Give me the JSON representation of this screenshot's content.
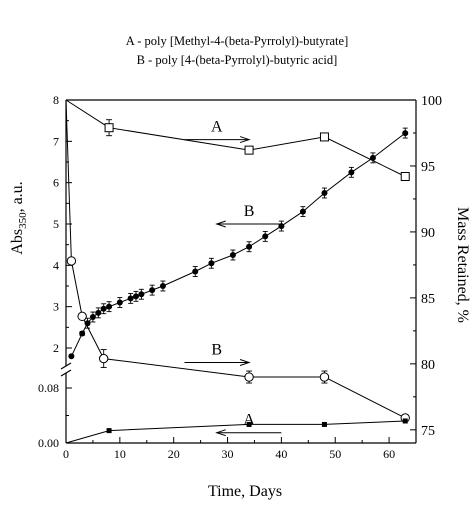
{
  "legend_lines": [
    "A - poly [Methyl-4-(beta-Pyrrolyl)-butyrate]",
    "B - poly [4-(beta-Pyrrolyl)-butyric acid]"
  ],
  "colors": {
    "ink": "#000000",
    "background": "#ffffff"
  },
  "chart_data": {
    "type": "line",
    "xlabel": "Time, Days",
    "ylabel_left": "Abs",
    "ylabel_left_sub": "350",
    "ylabel_left_suffix": ", a.u.",
    "ylabel_right": "Mass Retained, %",
    "xlim": [
      0,
      65
    ],
    "x_ticks": [
      0,
      10,
      20,
      30,
      40,
      50,
      60
    ],
    "y_left_axis_broken": true,
    "y_left_lower_ticks": [
      0.0,
      0.08
    ],
    "y_left_lower_tick_labels": [
      "0.00",
      "0.08"
    ],
    "y_left_upper_ticks": [
      2,
      3,
      4,
      5,
      6,
      7,
      8
    ],
    "y_left_upper_tick_labels": [
      "2",
      "3",
      "4",
      "5",
      "6",
      "7",
      "8"
    ],
    "y_right_lim": [
      74,
      100
    ],
    "y_right_ticks": [
      75,
      80,
      85,
      90,
      95,
      100
    ],
    "y_right_tick_labels": [
      "75",
      "80",
      "85",
      "90",
      "95",
      "100"
    ],
    "grid": false,
    "annotations": [
      {
        "label": "A",
        "arrow": "right",
        "x_from": 22,
        "x_to": 34,
        "y_axis": "right",
        "y": 97.0
      },
      {
        "label": "B",
        "arrow": "left",
        "x_from": 28,
        "x_to": 40,
        "y_axis": "left",
        "y": 5.0
      },
      {
        "label": "B",
        "arrow": "right",
        "x_from": 22,
        "x_to": 34,
        "y_axis": "right",
        "y": 80.1
      },
      {
        "label": "A",
        "arrow": "left",
        "x_from": 28,
        "x_to": 40,
        "y_axis": "left",
        "y": 0.015
      }
    ],
    "series": [
      {
        "label": "A",
        "quantity": "mass retained",
        "axis": "right",
        "marker": "open-square",
        "x": [
          0,
          8,
          34,
          48,
          63
        ],
        "y": [
          100,
          97.9,
          96.2,
          97.2,
          94.2
        ]
      },
      {
        "label": "B",
        "quantity": "mass retained",
        "axis": "right",
        "marker": "open-circle",
        "x": [
          0,
          1,
          3,
          7,
          34,
          48,
          63
        ],
        "y": [
          100,
          87.8,
          83.6,
          80.4,
          79.0,
          79.0,
          75.9
        ]
      },
      {
        "label": "B",
        "quantity": "absorbance",
        "axis": "left",
        "marker": "filled-circle",
        "x": [
          1,
          3,
          4,
          5,
          6,
          7,
          8,
          10,
          12,
          13,
          14,
          16,
          18,
          24,
          27,
          31,
          34,
          37,
          40,
          44,
          48,
          53,
          57,
          63
        ],
        "y": [
          1.8,
          2.35,
          2.6,
          2.75,
          2.85,
          2.95,
          3.0,
          3.1,
          3.2,
          3.25,
          3.3,
          3.4,
          3.5,
          3.85,
          4.05,
          4.25,
          4.45,
          4.7,
          4.95,
          5.3,
          5.75,
          6.25,
          6.6,
          7.2
        ],
        "err": [
          0,
          0.05,
          0.12,
          0.12,
          0.12,
          0.12,
          0.12,
          0.12,
          0.12,
          0.12,
          0.12,
          0.12,
          0.12,
          0.12,
          0.12,
          0.12,
          0.12,
          0.12,
          0.12,
          0.12,
          0.12,
          0.12,
          0.12,
          0.12
        ]
      },
      {
        "label": "A",
        "quantity": "absorbance",
        "axis": "left",
        "marker": "filled-square",
        "x": [
          0,
          8,
          34,
          48,
          63
        ],
        "y": [
          0.0,
          0.018,
          0.027,
          0.027,
          0.032
        ]
      }
    ]
  }
}
